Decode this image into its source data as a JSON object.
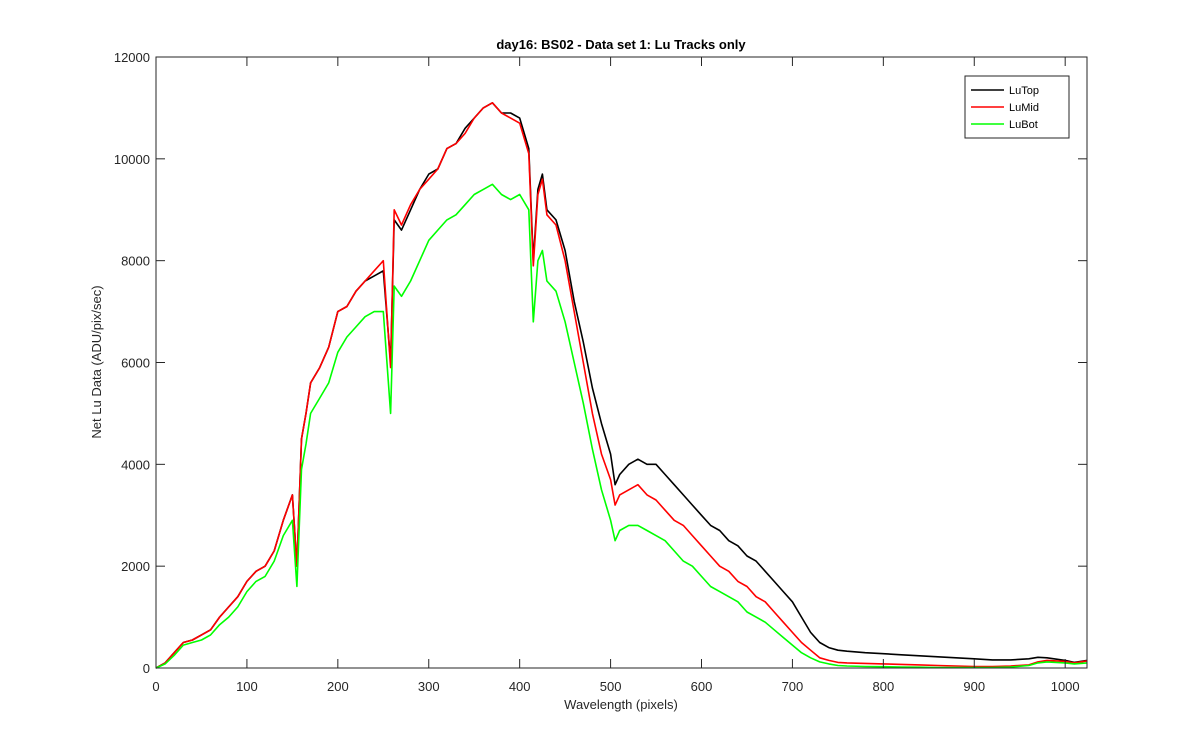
{
  "chart_data": {
    "type": "line",
    "title": "day16: BS02 - Data set 1: Lu Tracks only",
    "xlabel": "Wavelength (pixels)",
    "ylabel": "Net Lu Data (ADU/pix/sec)",
    "xlim": [
      0,
      1024
    ],
    "ylim": [
      0,
      12000
    ],
    "xticks": [
      0,
      100,
      200,
      300,
      400,
      500,
      600,
      700,
      800,
      900,
      1000
    ],
    "yticks": [
      0,
      2000,
      4000,
      6000,
      8000,
      10000,
      12000
    ],
    "grid": false,
    "legend_position": "top-right",
    "series": [
      {
        "name": "LuTop",
        "color": "#000000",
        "x": [
          0,
          10,
          20,
          30,
          40,
          50,
          60,
          70,
          80,
          90,
          100,
          110,
          120,
          130,
          140,
          150,
          155,
          160,
          165,
          170,
          180,
          190,
          200,
          210,
          220,
          230,
          240,
          250,
          258,
          262,
          270,
          280,
          290,
          300,
          310,
          320,
          330,
          340,
          350,
          360,
          370,
          380,
          390,
          400,
          410,
          415,
          420,
          425,
          430,
          440,
          450,
          460,
          470,
          480,
          490,
          500,
          505,
          510,
          520,
          530,
          540,
          550,
          560,
          570,
          580,
          590,
          600,
          610,
          620,
          630,
          640,
          650,
          660,
          670,
          680,
          690,
          700,
          710,
          720,
          730,
          740,
          750,
          760,
          780,
          800,
          820,
          840,
          860,
          880,
          900,
          920,
          940,
          960,
          970,
          980,
          1000,
          1010,
          1024
        ],
        "y": [
          0,
          100,
          300,
          500,
          550,
          650,
          750,
          1000,
          1200,
          1400,
          1700,
          1900,
          2000,
          2300,
          2900,
          3400,
          2000,
          4500,
          5000,
          5600,
          5900,
          6300,
          7000,
          7100,
          7400,
          7600,
          7700,
          7800,
          6000,
          8800,
          8600,
          9000,
          9400,
          9700,
          9800,
          10200,
          10300,
          10600,
          10800,
          11000,
          11100,
          10900,
          10900,
          10800,
          10200,
          8000,
          9400,
          9700,
          9000,
          8800,
          8200,
          7200,
          6400,
          5500,
          4800,
          4200,
          3600,
          3800,
          4000,
          4100,
          4000,
          4000,
          3800,
          3600,
          3400,
          3200,
          3000,
          2800,
          2700,
          2500,
          2400,
          2200,
          2100,
          1900,
          1700,
          1500,
          1300,
          1000,
          700,
          500,
          400,
          350,
          330,
          300,
          280,
          260,
          240,
          220,
          200,
          180,
          160,
          160,
          180,
          210,
          200,
          150,
          110,
          150
        ]
      },
      {
        "name": "LuMid",
        "color": "#ff0000",
        "x": [
          0,
          10,
          20,
          30,
          40,
          50,
          60,
          70,
          80,
          90,
          100,
          110,
          120,
          130,
          140,
          150,
          155,
          160,
          165,
          170,
          180,
          190,
          200,
          210,
          220,
          230,
          240,
          250,
          258,
          262,
          270,
          280,
          290,
          300,
          310,
          320,
          330,
          340,
          350,
          360,
          370,
          380,
          390,
          400,
          410,
          415,
          420,
          425,
          430,
          440,
          450,
          460,
          470,
          480,
          490,
          500,
          505,
          510,
          520,
          530,
          540,
          550,
          560,
          570,
          580,
          590,
          600,
          610,
          620,
          630,
          640,
          650,
          660,
          670,
          680,
          690,
          700,
          710,
          720,
          730,
          740,
          750,
          760,
          780,
          800,
          820,
          840,
          860,
          880,
          900,
          920,
          940,
          960,
          970,
          980,
          1000,
          1010,
          1024
        ],
        "y": [
          0,
          100,
          300,
          500,
          550,
          650,
          750,
          1000,
          1200,
          1400,
          1700,
          1900,
          2000,
          2300,
          2900,
          3400,
          2000,
          4500,
          5000,
          5600,
          5900,
          6300,
          7000,
          7100,
          7400,
          7600,
          7800,
          8000,
          5900,
          9000,
          8700,
          9100,
          9400,
          9600,
          9800,
          10200,
          10300,
          10500,
          10800,
          11000,
          11100,
          10900,
          10800,
          10700,
          10100,
          7900,
          9300,
          9600,
          8900,
          8700,
          8000,
          7000,
          6000,
          5000,
          4200,
          3700,
          3200,
          3400,
          3500,
          3600,
          3400,
          3300,
          3100,
          2900,
          2800,
          2600,
          2400,
          2200,
          2000,
          1900,
          1700,
          1600,
          1400,
          1300,
          1100,
          900,
          700,
          500,
          350,
          200,
          150,
          110,
          100,
          90,
          80,
          70,
          60,
          50,
          40,
          30,
          30,
          40,
          60,
          120,
          150,
          130,
          100,
          140
        ]
      },
      {
        "name": "LuBot",
        "color": "#00ff00",
        "x": [
          0,
          10,
          20,
          30,
          40,
          50,
          60,
          70,
          80,
          90,
          100,
          110,
          120,
          130,
          140,
          150,
          155,
          160,
          165,
          170,
          180,
          190,
          200,
          210,
          220,
          230,
          240,
          250,
          258,
          262,
          270,
          280,
          290,
          300,
          310,
          320,
          330,
          340,
          350,
          360,
          370,
          380,
          390,
          400,
          410,
          415,
          420,
          425,
          430,
          440,
          450,
          460,
          470,
          480,
          490,
          500,
          505,
          510,
          520,
          530,
          540,
          550,
          560,
          570,
          580,
          590,
          600,
          610,
          620,
          630,
          640,
          650,
          660,
          670,
          680,
          690,
          700,
          710,
          720,
          730,
          740,
          750,
          760,
          780,
          800,
          820,
          840,
          860,
          880,
          900,
          920,
          940,
          960,
          970,
          980,
          1000,
          1010,
          1024
        ],
        "y": [
          0,
          80,
          250,
          450,
          500,
          550,
          650,
          850,
          1000,
          1200,
          1500,
          1700,
          1800,
          2100,
          2600,
          2900,
          1600,
          3900,
          4400,
          5000,
          5300,
          5600,
          6200,
          6500,
          6700,
          6900,
          7000,
          7000,
          5000,
          7500,
          7300,
          7600,
          8000,
          8400,
          8600,
          8800,
          8900,
          9100,
          9300,
          9400,
          9500,
          9300,
          9200,
          9300,
          9000,
          6800,
          8000,
          8200,
          7600,
          7400,
          6800,
          6000,
          5200,
          4300,
          3500,
          2900,
          2500,
          2700,
          2800,
          2800,
          2700,
          2600,
          2500,
          2300,
          2100,
          2000,
          1800,
          1600,
          1500,
          1400,
          1300,
          1100,
          1000,
          900,
          750,
          600,
          450,
          300,
          200,
          120,
          80,
          50,
          40,
          30,
          25,
          20,
          15,
          10,
          10,
          10,
          10,
          20,
          50,
          100,
          120,
          100,
          80,
          100
        ]
      }
    ]
  }
}
